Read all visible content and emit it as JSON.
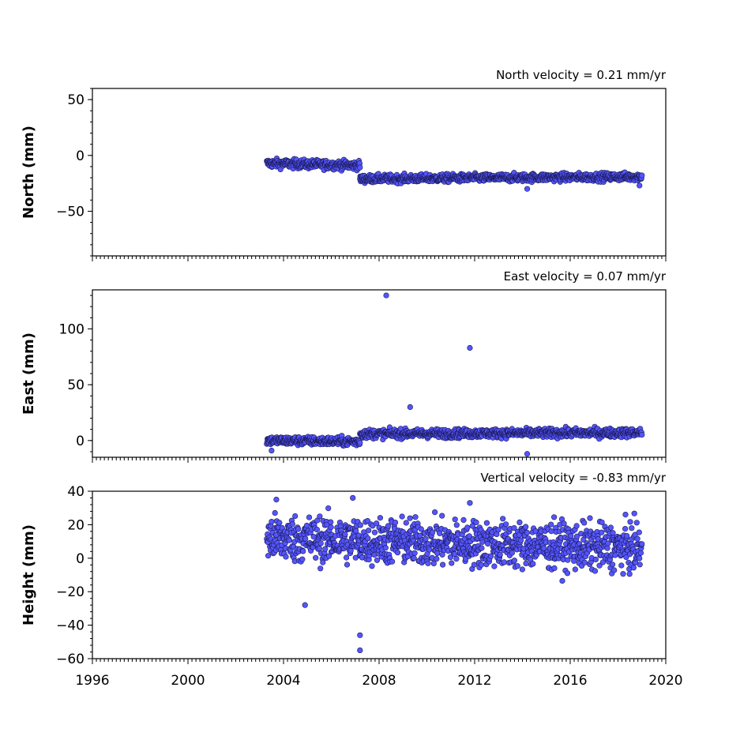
{
  "chart_data": [
    {
      "type": "scatter",
      "title": "North velocity = 0.21 mm/yr",
      "ylabel": "North (mm)",
      "xlim": [
        1996,
        2020
      ],
      "ylim": [
        -90,
        60
      ],
      "y_ticks": [
        50,
        0,
        -50
      ],
      "y_tick_labels": [
        "50",
        "0",
        "−50"
      ],
      "outliers": [
        {
          "x": 2014.2,
          "y": -30
        },
        {
          "x": 2018.9,
          "y": -27
        }
      ],
      "segments": [
        {
          "x_start": 2003.3,
          "x_end": 2007.2,
          "y_start": -7,
          "y_end": -9,
          "spread": 2
        },
        {
          "x_start": 2007.2,
          "x_end": 2019.0,
          "y_start": -21,
          "y_end": -19,
          "spread": 1.8
        }
      ]
    },
    {
      "type": "scatter",
      "title": "East velocity = 0.07 mm/yr",
      "ylabel": "East (mm)",
      "xlim": [
        1996,
        2020
      ],
      "ylim": [
        -15,
        135
      ],
      "y_ticks": [
        100,
        50,
        0
      ],
      "y_tick_labels": [
        "100",
        "50",
        "0"
      ],
      "outliers": [
        {
          "x": 2008.3,
          "y": 130
        },
        {
          "x": 2011.8,
          "y": 83
        },
        {
          "x": 2009.3,
          "y": 30
        },
        {
          "x": 2014.2,
          "y": -12
        },
        {
          "x": 2003.5,
          "y": -9
        }
      ],
      "segments": [
        {
          "x_start": 2003.3,
          "x_end": 2007.2,
          "y_start": 0,
          "y_end": -1,
          "spread": 2
        },
        {
          "x_start": 2007.2,
          "x_end": 2019.0,
          "y_start": 6,
          "y_end": 7,
          "spread": 2
        }
      ]
    },
    {
      "type": "scatter",
      "title": "Vertical velocity = -0.83 mm/yr",
      "ylabel": "Height (mm)",
      "xlim": [
        1996,
        2020
      ],
      "ylim": [
        -60,
        40
      ],
      "y_ticks": [
        40,
        20,
        0,
        -20,
        -40,
        -60
      ],
      "y_tick_labels": [
        "40",
        "20",
        "0",
        "−20",
        "−40",
        "−60"
      ],
      "outliers": [
        {
          "x": 2007.2,
          "y": -46
        },
        {
          "x": 2007.2,
          "y": -55
        },
        {
          "x": 2004.9,
          "y": -28
        },
        {
          "x": 2003.7,
          "y": 35
        },
        {
          "x": 2006.9,
          "y": 36
        },
        {
          "x": 2011.8,
          "y": 33
        }
      ],
      "segments": [
        {
          "x_start": 2003.3,
          "x_end": 2019.0,
          "y_start": 12,
          "y_end": 6,
          "spread": 7
        }
      ]
    }
  ],
  "x_ticks": [
    1996,
    2000,
    2004,
    2008,
    2012,
    2016,
    2020
  ],
  "x_tick_labels": [
    "1996",
    "2000",
    "2004",
    "2008",
    "2012",
    "2016",
    "2020"
  ]
}
